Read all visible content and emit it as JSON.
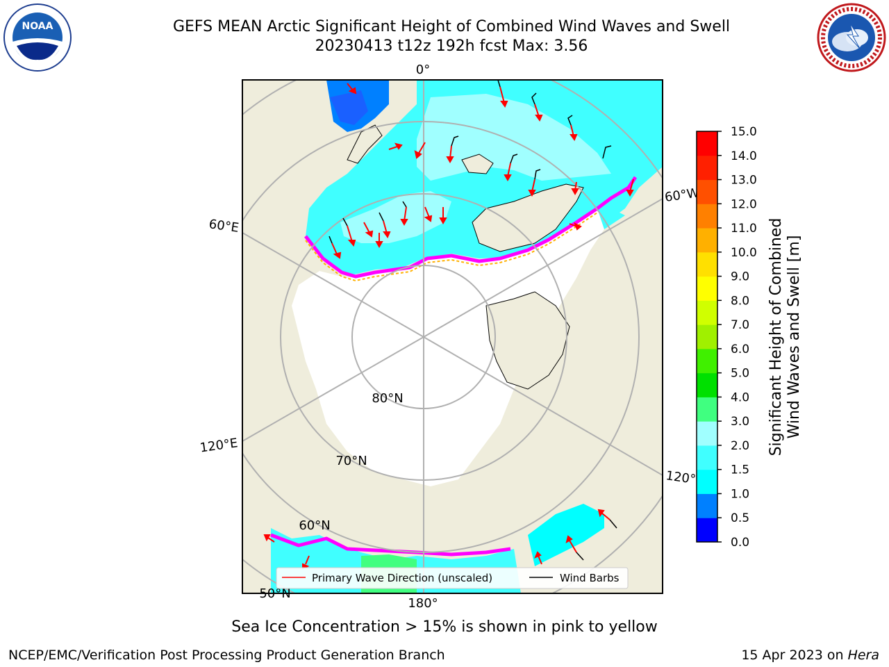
{
  "title_line1": "GEFS MEAN Arctic Significant Height of Combined Wind Waves and Swell",
  "title_line2": "20230413 t12z 192h fcst   Max: 3.56",
  "logos": {
    "noaa_icon": "noaa-logo",
    "noaa_text": "NOAA",
    "nws_icon": "nws-logo"
  },
  "map": {
    "lon_labels": [
      "0°",
      "60°W",
      "120°W",
      "180°",
      "120°E",
      "60°E"
    ],
    "lat_labels": [
      "80°N",
      "70°N",
      "60°N",
      "50°N"
    ],
    "colors": {
      "land": "#efeddc",
      "ice": "#ffffff",
      "ice_edge": "#ff00ff",
      "ice_edge_inner": "#ffb000",
      "grid": "#b0b0b0",
      "arrow": "#ff0000"
    }
  },
  "legend": {
    "wave_dir": "Primary Wave Direction (unscaled)",
    "wind_barbs": "Wind Barbs"
  },
  "colorbar": {
    "label_line1": "Significant Height of Combined",
    "label_line2": "Wind Waves and Swell [m]",
    "ticks": [
      "0.0",
      "0.5",
      "1.0",
      "1.5",
      "2.0",
      "3.0",
      "4.0",
      "5.0",
      "6.0",
      "7.0",
      "8.0",
      "9.0",
      "10.0",
      "11.0",
      "12.0",
      "13.0",
      "14.0",
      "15.0"
    ],
    "colors": [
      "#0000ff",
      "#0080ff",
      "#00ffff",
      "#40ffff",
      "#a0ffff",
      "#40ff80",
      "#00e000",
      "#40f000",
      "#a0f000",
      "#d0ff00",
      "#ffff00",
      "#ffe000",
      "#ffb000",
      "#ff8000",
      "#ff5000",
      "#ff2000",
      "#ff0000"
    ]
  },
  "note": "Sea Ice Concentration > 15% is shown in pink to yellow",
  "credit": "NCEP/EMC/Verification Post Processing Product Generation Branch",
  "stamp_date": "15 Apr 2023 on",
  "stamp_host": "Hera"
}
